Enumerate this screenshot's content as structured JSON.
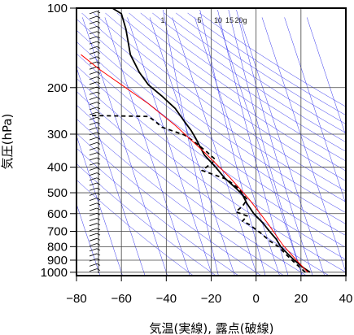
{
  "chart_data": {
    "type": "line",
    "title": "",
    "xlabel": "気温(実線), 露点(破線)",
    "ylabel": "気圧(hPa)",
    "xlim": [
      -80,
      40
    ],
    "ylim": [
      1030,
      100
    ],
    "y_scale": "log",
    "grid": true,
    "x_ticks": [
      "−80",
      "−60",
      "−40",
      "−20",
      "0",
      "20",
      "40"
    ],
    "x_tick_values": [
      -80,
      -60,
      -40,
      -20,
      0,
      20,
      40
    ],
    "y_ticks": [
      "100",
      "200",
      "300",
      "400",
      "500",
      "600",
      "700",
      "800",
      "900",
      "1000"
    ],
    "y_tick_values": [
      100,
      200,
      300,
      400,
      500,
      600,
      700,
      800,
      900,
      1000
    ],
    "mixing_ratio_labels": [
      "1",
      "5",
      "10",
      "15",
      "20g"
    ],
    "mixing_ratio_values": [
      1,
      5,
      10,
      15,
      20
    ],
    "series": [
      {
        "style": "solid",
        "color": "#000000",
        "points": [
          [
            -64,
            100
          ],
          [
            -60,
            105
          ],
          [
            -58,
            120
          ],
          [
            -56,
            150
          ],
          [
            -52,
            175
          ],
          [
            -48,
            195
          ],
          [
            -42,
            215
          ],
          [
            -36,
            240
          ],
          [
            -32,
            268
          ],
          [
            -29,
            290
          ],
          [
            -27,
            310
          ],
          [
            -23,
            360
          ],
          [
            -18,
            400
          ],
          [
            -14,
            440
          ],
          [
            -9,
            480
          ],
          [
            -6,
            510
          ],
          [
            -4,
            550
          ],
          [
            -1,
            600
          ],
          [
            3,
            650
          ],
          [
            6,
            700
          ],
          [
            9,
            750
          ],
          [
            11,
            800
          ],
          [
            14,
            850
          ],
          [
            17,
            900
          ],
          [
            21,
            960
          ],
          [
            24,
            1000
          ]
        ]
      },
      {
        "style": "dashed",
        "color": "#000000",
        "points": [
          [
            -73,
            255
          ],
          [
            -48,
            257
          ],
          [
            -45,
            268
          ],
          [
            -42,
            282
          ],
          [
            -38,
            290
          ],
          [
            -32,
            302
          ],
          [
            -28,
            318
          ],
          [
            -22,
            350
          ],
          [
            -18,
            375
          ],
          [
            -24,
            412
          ],
          [
            -13,
            445
          ],
          [
            -8,
            480
          ],
          [
            -6,
            505
          ],
          [
            -4,
            530
          ],
          [
            -6,
            562
          ],
          [
            -9,
            590
          ],
          [
            -4,
            612
          ],
          [
            -6,
            640
          ],
          [
            -3,
            660
          ],
          [
            2,
            710
          ],
          [
            6,
            760
          ],
          [
            10,
            800
          ],
          [
            13,
            850
          ],
          [
            16,
            900
          ],
          [
            19,
            950
          ],
          [
            22,
            1000
          ]
        ]
      },
      {
        "style": "solid",
        "color": "#ff0000",
        "points": [
          [
            -78,
            150
          ],
          [
            -70,
            170
          ],
          [
            -60,
            195
          ],
          [
            -48,
            230
          ],
          [
            -36,
            278
          ],
          [
            -24,
            345
          ],
          [
            -12,
            435
          ],
          [
            -3,
            530
          ],
          [
            5,
            650
          ],
          [
            12,
            790
          ],
          [
            18,
            900
          ],
          [
            23,
            1000
          ]
        ]
      }
    ],
    "colors": {
      "isolines": "#3333ee",
      "temperature": "#000000",
      "dewpoint": "#000000",
      "parcel": "#ff0000"
    }
  }
}
